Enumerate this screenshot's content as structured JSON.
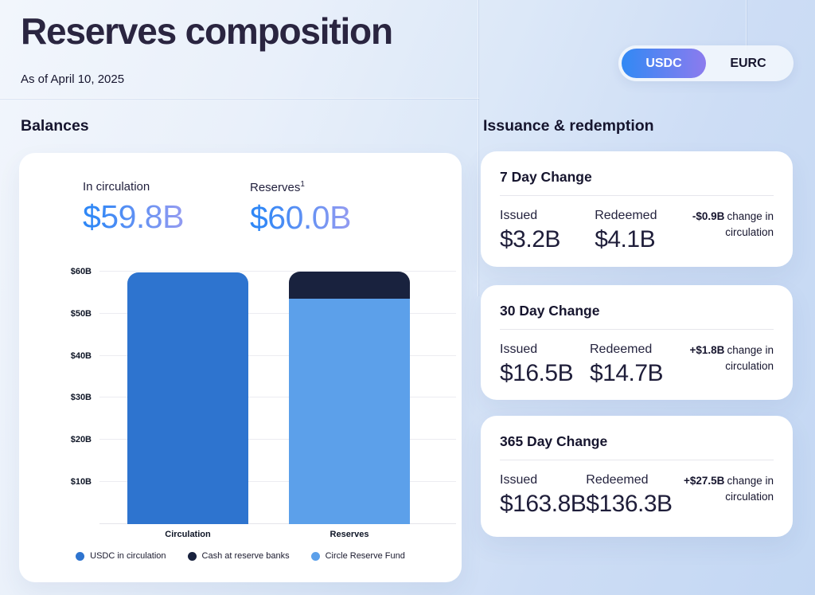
{
  "page": {
    "title": "Reserves composition",
    "as_of": "As of April 10, 2025"
  },
  "toggle": {
    "options": [
      "USDC",
      "EURC"
    ],
    "selected": "USDC"
  },
  "balances": {
    "heading": "Balances",
    "stats": [
      {
        "label": "In circulation",
        "sup": "",
        "value": "$59.8B"
      },
      {
        "label": "Reserves",
        "sup": "1",
        "value": "$60.0B"
      }
    ]
  },
  "chart_data": {
    "type": "bar",
    "stacked": true,
    "title": "",
    "xlabel": "",
    "ylabel": "",
    "categories": [
      "Circulation",
      "Reserves"
    ],
    "bars": [
      {
        "label": "Circulation",
        "total": 59.8,
        "segments": [
          {
            "name": "USDC in circulation",
            "value": 59.8,
            "color": "#2E74CF"
          }
        ]
      },
      {
        "label": "Reserves",
        "total": 60.0,
        "segments": [
          {
            "name": "Circle Reserve Fund",
            "value": 53.5,
            "color": "#5CA0EA"
          },
          {
            "name": "Cash at reserve banks",
            "value": 6.5,
            "color": "#19223E"
          }
        ]
      }
    ],
    "y_ticks": [
      10,
      20,
      30,
      40,
      50,
      60
    ],
    "y_tick_labels": [
      "$10B",
      "$20B",
      "$30B",
      "$40B",
      "$50B",
      "$60B"
    ],
    "ylim": [
      0,
      63.4
    ],
    "unit": "$B",
    "grid": true,
    "legend_position": "bottom",
    "legend_items": [
      {
        "label": "USDC in circulation",
        "color": "#2E74CF"
      },
      {
        "label": "Cash at reserve banks",
        "color": "#19223E"
      },
      {
        "label": "Circle Reserve Fund",
        "color": "#5CA0EA"
      }
    ]
  },
  "issuance": {
    "heading": "Issuance & redemption",
    "cards": [
      {
        "title": "7 Day Change",
        "issued_label": "Issued",
        "issued_value": "$3.2B",
        "redeemed_label": "Redeemed",
        "redeemed_value": "$4.1B",
        "change_value": "-$0.9B",
        "change_suffix": "change in circulation"
      },
      {
        "title": "30 Day Change",
        "issued_label": "Issued",
        "issued_value": "$16.5B",
        "redeemed_label": "Redeemed",
        "redeemed_value": "$14.7B",
        "change_value": "+$1.8B",
        "change_suffix": "change in circulation"
      },
      {
        "title": "365 Day Change",
        "issued_label": "Issued",
        "issued_value": "$163.8B",
        "redeemed_label": "Redeemed",
        "redeemed_value": "$136.3B",
        "change_value": "+$27.5B",
        "change_suffix": "change in circulation"
      }
    ]
  },
  "colors": {
    "accent_blue": "#2E74CF",
    "navy": "#19223E",
    "light_blue": "#5CA0EA",
    "value_gradient": [
      "#2F87F6",
      "#8F9AF1"
    ],
    "toggle_gradient": [
      "#3189F4",
      "#8C7BEE"
    ],
    "page_background": [
      "#F2F6FC",
      "#C3D7F3"
    ]
  }
}
